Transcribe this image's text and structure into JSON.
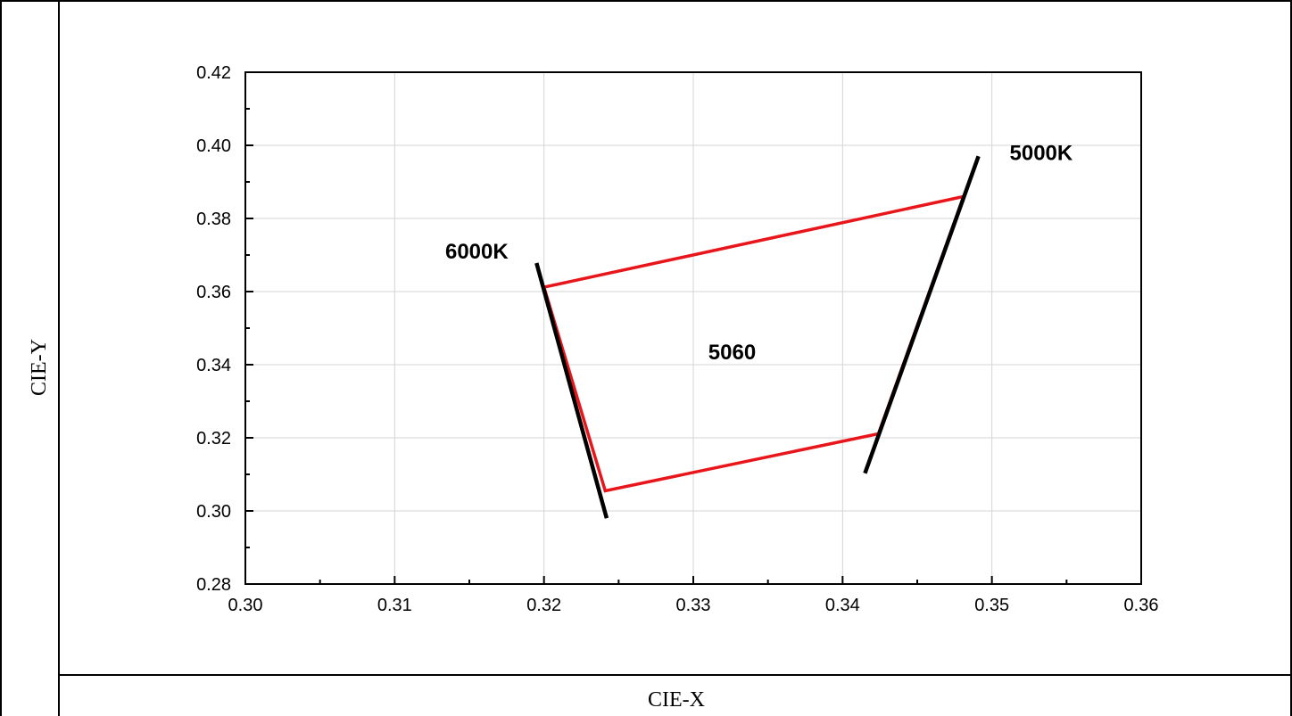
{
  "chart_data": {
    "type": "line",
    "title": "",
    "xlabel": "CIE-X",
    "ylabel": "CIE-Y",
    "xlim": [
      0.3,
      0.36
    ],
    "ylim": [
      0.28,
      0.42
    ],
    "x_ticks": [
      "0.30",
      "0.31",
      "0.32",
      "0.33",
      "0.34",
      "0.35",
      "0.36"
    ],
    "y_ticks": [
      "0.28",
      "0.30",
      "0.32",
      "0.34",
      "0.36",
      "0.38",
      "0.40",
      "0.42"
    ],
    "grid": true,
    "series": [
      {
        "color": "#e8161b",
        "closed": true,
        "points": [
          [
            0.32,
            0.3612
          ],
          [
            0.3481,
            0.386
          ],
          [
            0.3424,
            0.3211
          ],
          [
            0.3241,
            0.3055
          ]
        ]
      },
      {
        "color": "#000000",
        "points": [
          [
            0.3195,
            0.3678
          ],
          [
            0.3242,
            0.298
          ]
        ]
      },
      {
        "color": "#000000",
        "points": [
          [
            0.3491,
            0.397
          ],
          [
            0.3415,
            0.3103
          ]
        ]
      }
    ],
    "annotations": [
      {
        "text": "6000K",
        "x": 0.3155,
        "y": 0.369
      },
      {
        "text": "5000K",
        "x": 0.3533,
        "y": 0.396
      },
      {
        "text": "5060",
        "x": 0.3326,
        "y": 0.3415
      }
    ]
  },
  "colors": {
    "frame": "#000000",
    "grid": "#d4d4d4",
    "polygon": "#e8161b",
    "isotherm": "#000000"
  }
}
